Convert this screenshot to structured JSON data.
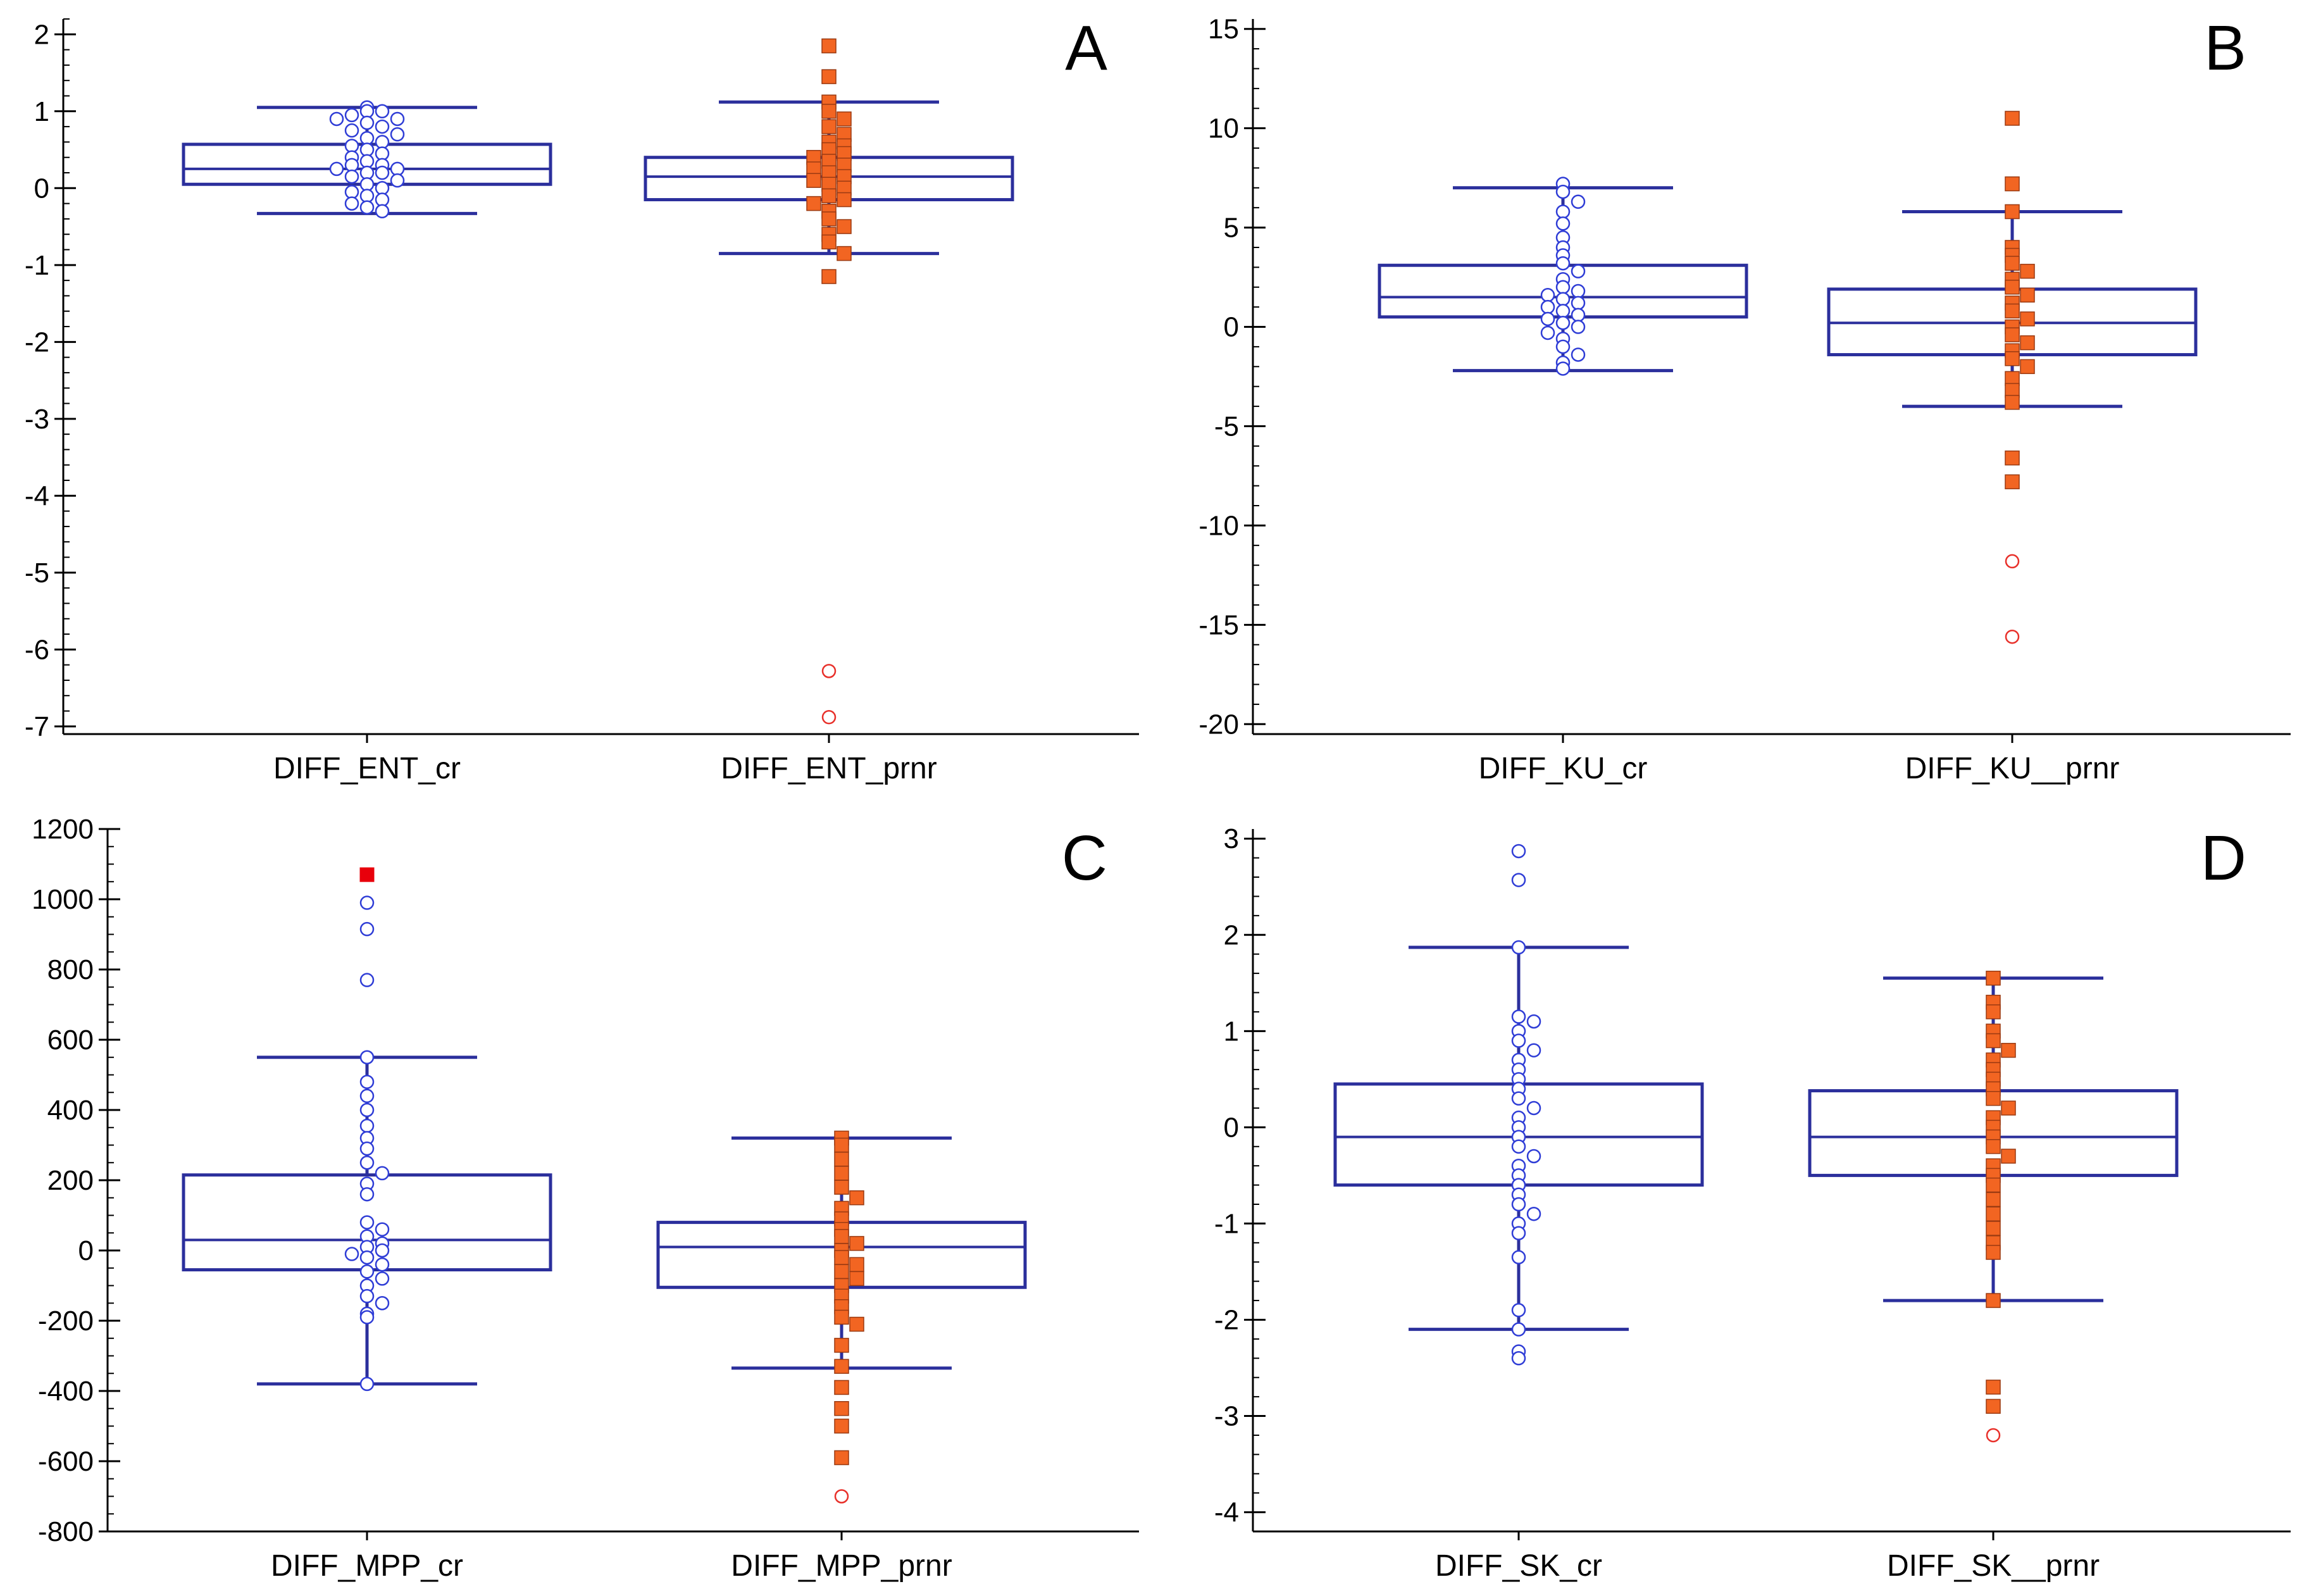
{
  "colors": {
    "axis": "#000000",
    "box": "#2b2f9c",
    "open_marker": "#2f3dd6",
    "filled_marker": "#f26522",
    "filled_marker_edge": "#9a3a12",
    "outlier_circle": "#e8302a",
    "outlier_square": "#e8000b"
  },
  "chart_data": [
    {
      "type": "box",
      "panel_label": "A",
      "ylim": [
        -7.1,
        2.2
      ],
      "yticks": [
        2,
        1,
        0,
        -1,
        -2,
        -3,
        -4,
        -5,
        -6,
        -7
      ],
      "minor_tick_step": 0.2,
      "categories": [
        "DIFF_ENT_cr",
        "DIFF_ENT_prnr"
      ],
      "series": [
        {
          "name": "DIFF_ENT_cr",
          "marker": "open-circle",
          "q1": 0.05,
          "median": 0.25,
          "q3": 0.57,
          "whisker_low": -0.33,
          "whisker_high": 1.05,
          "points": [
            1.05,
            1.0,
            1.0,
            0.95,
            0.9,
            0.9,
            0.85,
            0.8,
            0.75,
            0.7,
            0.65,
            0.6,
            0.55,
            0.5,
            0.45,
            0.4,
            0.35,
            0.3,
            0.3,
            0.25,
            0.25,
            0.2,
            0.2,
            0.15,
            0.1,
            0.05,
            0.0,
            -0.05,
            -0.1,
            -0.15,
            -0.2,
            -0.25,
            -0.3
          ],
          "outliers": []
        },
        {
          "name": "DIFF_ENT_prnr",
          "marker": "filled-square",
          "q1": -0.15,
          "median": 0.15,
          "q3": 0.4,
          "whisker_low": -0.85,
          "whisker_high": 1.12,
          "points": [
            1.85,
            1.45,
            1.12,
            1.0,
            0.9,
            0.8,
            0.7,
            0.6,
            0.55,
            0.5,
            0.45,
            0.4,
            0.35,
            0.3,
            0.25,
            0.2,
            0.15,
            0.1,
            0.05,
            0.0,
            -0.1,
            -0.15,
            -0.2,
            -0.3,
            -0.4,
            -0.5,
            -0.6,
            -0.7,
            -0.85,
            -1.15
          ],
          "outliers": [
            -6.28,
            -6.88
          ]
        }
      ]
    },
    {
      "type": "box",
      "panel_label": "B",
      "ylim": [
        -20.5,
        15.5
      ],
      "yticks": [
        15,
        10,
        5,
        0,
        -5,
        -10,
        -15,
        -20
      ],
      "minor_tick_step": 1,
      "categories": [
        "DIFF_KU_cr",
        "DIFF_KU__prnr"
      ],
      "series": [
        {
          "name": "DIFF_KU_cr",
          "marker": "open-circle",
          "q1": 0.5,
          "median": 1.5,
          "q3": 3.1,
          "whisker_low": -2.2,
          "whisker_high": 7.0,
          "points": [
            7.2,
            6.8,
            6.3,
            5.8,
            5.2,
            4.5,
            4.0,
            3.6,
            3.2,
            2.8,
            2.4,
            2.0,
            1.8,
            1.6,
            1.4,
            1.2,
            1.0,
            0.8,
            0.6,
            0.4,
            0.2,
            0.0,
            -0.3,
            -0.6,
            -1.0,
            -1.4,
            -1.8,
            -2.1
          ],
          "outliers": []
        },
        {
          "name": "DIFF_KU__prnr",
          "marker": "filled-square",
          "q1": -1.4,
          "median": 0.2,
          "q3": 1.9,
          "whisker_low": -4.0,
          "whisker_high": 5.8,
          "points": [
            10.5,
            7.2,
            5.8,
            4.0,
            3.6,
            3.2,
            2.8,
            2.4,
            2.0,
            1.6,
            1.2,
            0.8,
            0.4,
            0.0,
            -0.4,
            -0.8,
            -1.2,
            -1.6,
            -2.0,
            -2.6,
            -3.2,
            -3.8,
            -6.6,
            -7.8
          ],
          "outliers": [
            -11.8,
            -15.6
          ]
        }
      ]
    },
    {
      "type": "box",
      "panel_label": "C",
      "ylim": [
        -800,
        1200
      ],
      "yticks": [
        1200,
        1000,
        800,
        600,
        400,
        200,
        0,
        -200,
        -400,
        -600,
        -800
      ],
      "minor_tick_step": 50,
      "categories": [
        "DIFF_MPP_cr",
        "DIFF_MPP_prnr"
      ],
      "series": [
        {
          "name": "DIFF_MPP_cr",
          "marker": "open-circle",
          "q1": -55,
          "median": 30,
          "q3": 215,
          "whisker_low": -380,
          "whisker_high": 550,
          "points": [
            990,
            915,
            770,
            550,
            480,
            440,
            400,
            355,
            320,
            290,
            250,
            220,
            190,
            160,
            80,
            60,
            40,
            20,
            10,
            0,
            -10,
            -20,
            -40,
            -60,
            -80,
            -100,
            -130,
            -150,
            -180,
            -190,
            -380
          ],
          "outliers": [
            1070
          ]
        },
        {
          "name": "DIFF_MPP_prnr",
          "marker": "filled-square",
          "q1": -105,
          "median": 10,
          "q3": 80,
          "whisker_low": -335,
          "whisker_high": 320,
          "points": [
            320,
            300,
            260,
            220,
            180,
            150,
            120,
            90,
            60,
            40,
            20,
            0,
            -20,
            -40,
            -60,
            -80,
            -100,
            -130,
            -160,
            -190,
            -210,
            -270,
            -330,
            -390,
            -450,
            -500,
            -590
          ],
          "outliers": [
            -700
          ]
        }
      ]
    },
    {
      "type": "box",
      "panel_label": "D",
      "ylim": [
        -4.2,
        3.1
      ],
      "yticks": [
        3,
        2,
        1,
        0,
        -1,
        -2,
        -3,
        -4
      ],
      "minor_tick_step": 0.2,
      "categories": [
        "DIFF_SK_cr",
        "DIFF_SK__prnr"
      ],
      "series": [
        {
          "name": "DIFF_SK_cr",
          "marker": "open-circle",
          "q1": -0.6,
          "median": -0.1,
          "q3": 0.45,
          "whisker_low": -2.1,
          "whisker_high": 1.87,
          "points": [
            2.87,
            2.57,
            1.87,
            1.15,
            1.1,
            1.0,
            0.9,
            0.8,
            0.7,
            0.6,
            0.5,
            0.4,
            0.3,
            0.2,
            0.1,
            0.0,
            -0.1,
            -0.2,
            -0.3,
            -0.4,
            -0.5,
            -0.6,
            -0.7,
            -0.8,
            -0.9,
            -1.0,
            -1.1,
            -1.35,
            -1.9,
            -2.1,
            -2.33,
            -2.4
          ],
          "outliers": []
        },
        {
          "name": "DIFF_SK__prnr",
          "marker": "filled-square",
          "q1": -0.5,
          "median": -0.1,
          "q3": 0.38,
          "whisker_low": -1.8,
          "whisker_high": 1.55,
          "points": [
            1.55,
            1.3,
            1.2,
            1.0,
            0.9,
            0.8,
            0.7,
            0.6,
            0.5,
            0.4,
            0.3,
            0.2,
            0.1,
            0.0,
            -0.1,
            -0.2,
            -0.3,
            -0.4,
            -0.5,
            -0.6,
            -0.75,
            -0.9,
            -1.05,
            -1.2,
            -1.3,
            -1.8,
            -2.7,
            -2.9
          ],
          "outliers": [
            -3.2
          ]
        }
      ]
    }
  ]
}
